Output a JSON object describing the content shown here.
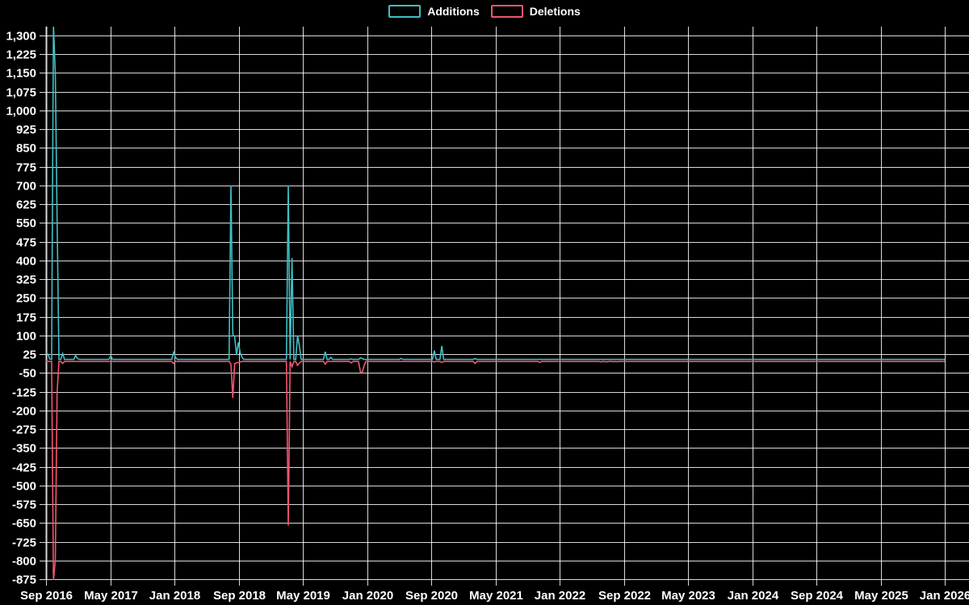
{
  "legend": {
    "items": [
      {
        "label": "Additions",
        "color": "#3fbfc4"
      },
      {
        "label": "Deletions",
        "color": "#f2566f"
      }
    ]
  },
  "chart_data": {
    "type": "line",
    "title": "",
    "background": "#000000",
    "grid": true,
    "grid_color": "#ffffff",
    "text_color": "#ffffff",
    "legend_position": "top-center",
    "x_axis": {
      "start_date": "Sep 2016",
      "end_date": "Jan 2026",
      "months_per_tick": 8,
      "tick_labels": [
        "Sep 2016",
        "May 2017",
        "Jan 2018",
        "Sep 2018",
        "May 2019",
        "Jan 2020",
        "Sep 2020",
        "May 2021",
        "Jan 2022",
        "Sep 2022",
        "May 2023",
        "Jan 2024",
        "Sep 2024",
        "May 2025",
        "Jan 2026"
      ]
    },
    "y_axis": {
      "max": 1300,
      "min": -875,
      "step": 75,
      "tick_labels": [
        "1,300",
        "1,225",
        "1,150",
        "1,075",
        "1,000",
        "925",
        "850",
        "775",
        "700",
        "625",
        "550",
        "475",
        "400",
        "325",
        "250",
        "175",
        "100",
        "25",
        "-50",
        "-125",
        "-200",
        "-275",
        "-350",
        "-425",
        "-500",
        "-575",
        "-650",
        "-725",
        "-800",
        "-875"
      ]
    },
    "weeks_total": 486,
    "week0_date": "2016-09-01",
    "series": [
      {
        "name": "Additions",
        "color": "#3fbfc4",
        "baseline": 4,
        "points": [
          [
            0,
            28
          ],
          [
            1,
            26
          ],
          [
            2,
            6
          ],
          [
            4,
            1340
          ],
          [
            5,
            1150
          ],
          [
            6,
            570
          ],
          [
            9,
            28
          ],
          [
            16,
            20
          ],
          [
            17,
            8
          ],
          [
            35,
            20
          ],
          [
            69,
            33
          ],
          [
            70,
            12
          ],
          [
            100,
            700
          ],
          [
            101,
            105
          ],
          [
            102,
            95
          ],
          [
            103,
            22
          ],
          [
            104,
            72
          ],
          [
            105,
            30
          ],
          [
            106,
            12
          ],
          [
            131,
            700
          ],
          [
            133,
            410
          ],
          [
            136,
            100
          ],
          [
            137,
            60
          ],
          [
            151,
            35
          ],
          [
            154,
            12
          ],
          [
            165,
            6
          ],
          [
            170,
            10
          ],
          [
            171,
            8
          ],
          [
            192,
            8
          ],
          [
            210,
            40
          ],
          [
            214,
            58
          ],
          [
            232,
            8
          ]
        ]
      },
      {
        "name": "Deletions",
        "color": "#f2566f",
        "baseline": -4,
        "points": [
          [
            4,
            -880
          ],
          [
            5,
            -800
          ],
          [
            6,
            -130
          ],
          [
            9,
            -12
          ],
          [
            35,
            -5
          ],
          [
            69,
            -12
          ],
          [
            100,
            -15
          ],
          [
            101,
            -150
          ],
          [
            102,
            -12
          ],
          [
            103,
            -10
          ],
          [
            104,
            -8
          ],
          [
            105,
            -6
          ],
          [
            131,
            -660
          ],
          [
            133,
            -25
          ],
          [
            136,
            -20
          ],
          [
            137,
            -10
          ],
          [
            151,
            -15
          ],
          [
            165,
            -10
          ],
          [
            170,
            -45
          ],
          [
            171,
            -48
          ],
          [
            172,
            -20
          ],
          [
            192,
            -4
          ],
          [
            210,
            -6
          ],
          [
            214,
            -8
          ],
          [
            232,
            -12
          ],
          [
            267,
            -8
          ],
          [
            300,
            -6
          ],
          [
            303,
            -6
          ],
          [
            307,
            -5
          ],
          [
            309,
            -5
          ]
        ]
      }
    ]
  }
}
